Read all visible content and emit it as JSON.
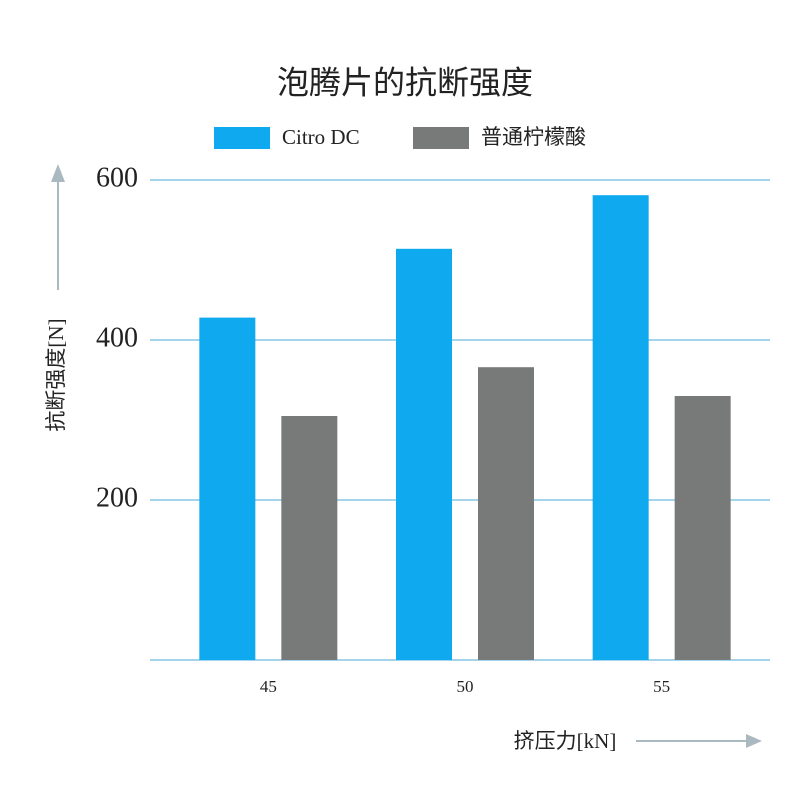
{
  "chart_data": {
    "type": "bar",
    "title": "泡腾片的抗断强度",
    "x_label": "挤压力[kN]",
    "y_label": "抗断强度[N]",
    "categories": [
      "45",
      "50",
      "55"
    ],
    "series": [
      {
        "name": "Citro DC",
        "color": "#0ea9ef",
        "values": [
          428,
          514,
          581
        ]
      },
      {
        "name": "普通柠檬酸",
        "color": "#787a7a",
        "values": [
          305,
          366,
          330
        ]
      }
    ],
    "ylim": [
      0,
      600
    ],
    "yticks": [
      200,
      400,
      600
    ],
    "grid": true
  }
}
